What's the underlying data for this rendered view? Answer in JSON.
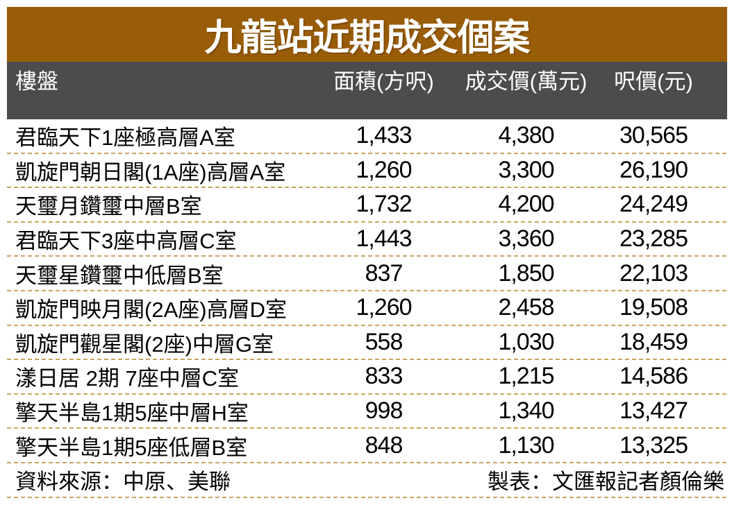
{
  "title": "九龍站近期成交個案",
  "chart_data": {
    "type": "table",
    "title": "九龍站近期成交個案",
    "columns": [
      "樓盤",
      "面積(方呎)",
      "成交價(萬元)",
      "呎價(元)"
    ],
    "rows": [
      [
        "君臨天下1座極高層A室",
        "1,433",
        "4,380",
        "30,565"
      ],
      [
        "凱旋門朝日閣(1A座)高層A室",
        "1,260",
        "3,300",
        "26,190"
      ],
      [
        "天璽月鑽璽中層B室",
        "1,732",
        "4,200",
        "24,249"
      ],
      [
        "君臨天下3座中高層C室",
        "1,443",
        "3,360",
        "23,285"
      ],
      [
        "天璽星鑽璽中低層B室",
        "837",
        "1,850",
        "22,103"
      ],
      [
        "凱旋門映月閣(2A座)高層D室",
        "1,260",
        "2,458",
        "19,508"
      ],
      [
        "凱旋門觀星閣(2座)中層G室",
        "558",
        "1,030",
        "18,459"
      ],
      [
        "漾日居 2期 7座中層C室",
        "833",
        "1,215",
        "14,586"
      ],
      [
        "擎天半島1期5座中層H室",
        "998",
        "1,340",
        "13,427"
      ],
      [
        "擎天半島1期5座低層B室",
        "848",
        "1,130",
        "13,325"
      ]
    ],
    "source_note": "資料來源：中原、美聯",
    "credit_note": "製表：文匯報記者顏倫樂"
  },
  "colors": {
    "title_bg": "#995C07",
    "header_bg": "#4C4C4E",
    "divider": "#C9A35E",
    "title_text": "#FFFFFF",
    "header_text": "#FFFFFF",
    "body_text": "#000000"
  }
}
